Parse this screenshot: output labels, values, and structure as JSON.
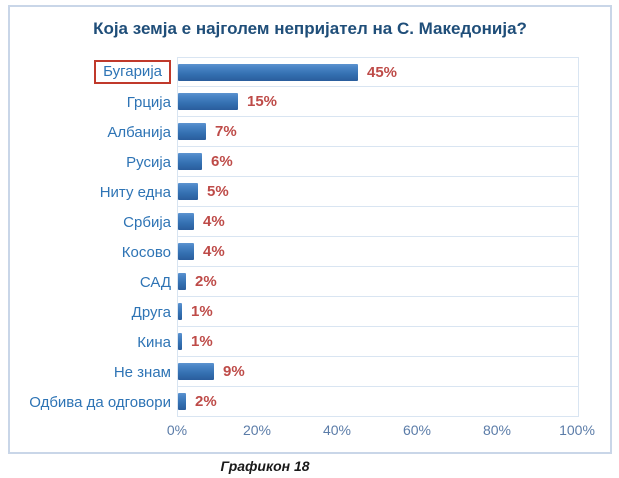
{
  "chart_data": {
    "type": "bar",
    "orientation": "horizontal",
    "title": "Која земја е најголем непријател на С. Македонија?",
    "caption": "Графикон 18",
    "categories": [
      "Бугарија",
      "Грција",
      "Албанија",
      "Русија",
      "Ниту една",
      "Србија",
      "Косово",
      "САД",
      "Друга",
      "Кина",
      "Не знам",
      "Одбива да одговори"
    ],
    "values": [
      45,
      15,
      7,
      6,
      5,
      4,
      4,
      2,
      1,
      1,
      9,
      2
    ],
    "value_labels": [
      "45%",
      "15%",
      "7%",
      "6%",
      "5%",
      "4%",
      "4%",
      "2%",
      "1%",
      "1%",
      "9%",
      "2%"
    ],
    "xlabel": "",
    "ylabel": "",
    "xlim": [
      0,
      100
    ],
    "x_ticks": [
      0,
      20,
      40,
      60,
      80,
      100
    ],
    "x_tick_labels": [
      "0%",
      "20%",
      "40%",
      "60%",
      "80%",
      "100%"
    ],
    "legend": false,
    "grid": "horizontal-row-separators",
    "highlight": {
      "category": "Бугарија",
      "style": "red-box-around-label"
    },
    "colors": {
      "bar": "#3470B1",
      "bar_gradient_top": "#5D94D0",
      "bar_gradient_bottom": "#2A5D9C",
      "value_label": "#BE4B48",
      "category_label": "#2E74B5",
      "title": "#1F4E79",
      "tick_label": "#5B7CA8",
      "grid_line": "#D9E5F2",
      "frame_border": "#C9D6E8",
      "highlight_box": "#C0392B"
    }
  }
}
